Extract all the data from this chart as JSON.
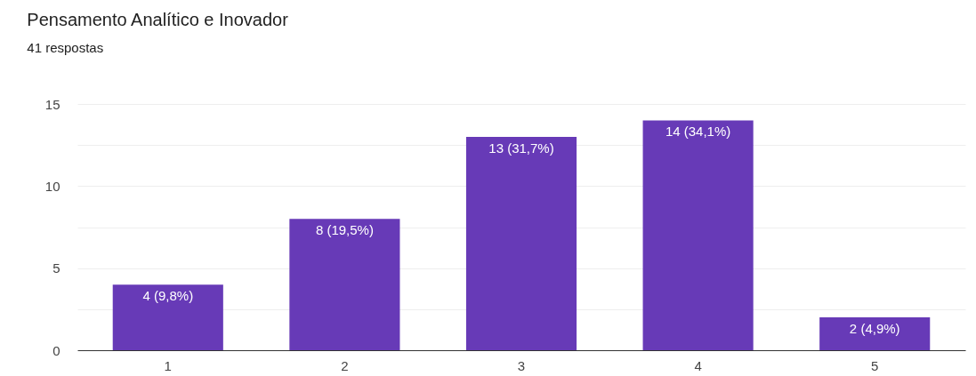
{
  "chart_data": {
    "type": "bar",
    "title": "Pensamento Analítico e Inovador",
    "subtitle": "41 respostas",
    "categories": [
      "1",
      "2",
      "3",
      "4",
      "5"
    ],
    "values": [
      4,
      8,
      13,
      14,
      2
    ],
    "value_labels": [
      "4 (9,8%)",
      "8 (19,5%)",
      "13 (31,7%)",
      "14 (34,1%)",
      "2 (4,9%)"
    ],
    "color": "#673ab7",
    "ylim": [
      0,
      15
    ],
    "yticks": [
      0,
      {
        "value": 2.5,
        "label": null
      },
      5,
      {
        "value": 7.5,
        "label": null
      },
      10,
      {
        "value": 12.5,
        "label": null
      },
      15
    ],
    "grid": "y"
  }
}
